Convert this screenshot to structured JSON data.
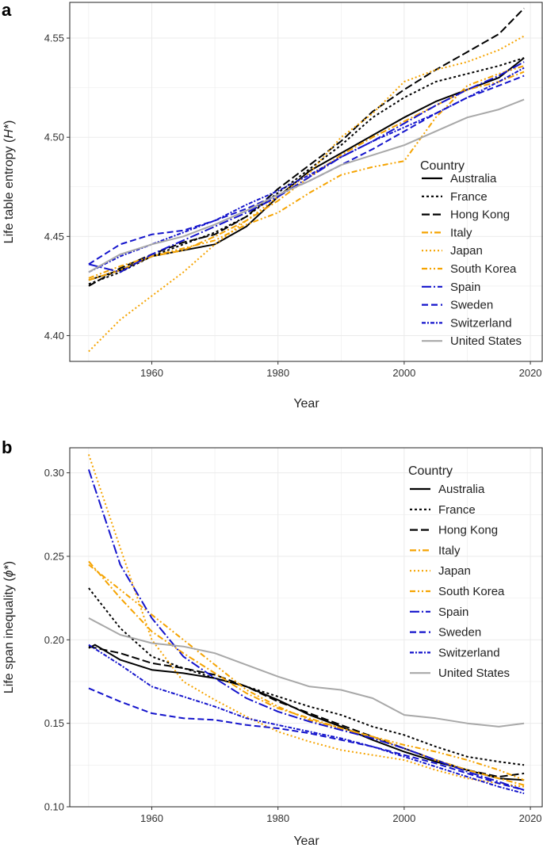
{
  "chart_data": [
    {
      "panel": "a",
      "type": "line",
      "xlabel": "Year",
      "ylabel": "Life table entropy (H*)",
      "ylabel_parts": [
        "Life table entropy (",
        "H*",
        ")"
      ],
      "xlim": [
        1947,
        2022
      ],
      "ylim": [
        4.387,
        4.568
      ],
      "xticks": [
        1960,
        1980,
        2000,
        2020
      ],
      "yticks": [
        4.4,
        4.45,
        4.5,
        4.55
      ],
      "ytick_labels": [
        "4.40",
        "4.45",
        "4.50",
        "4.55"
      ],
      "legend_title": "Country",
      "series": [
        {
          "name": "Australia",
          "color": "#000000",
          "dash": "none",
          "x": [
            1950,
            1955,
            1960,
            1965,
            1970,
            1975,
            1980,
            1985,
            1990,
            1995,
            2000,
            2005,
            2010,
            2015,
            2019
          ],
          "values": [
            4.428,
            4.433,
            4.44,
            4.443,
            4.446,
            4.455,
            4.47,
            4.483,
            4.492,
            4.501,
            4.51,
            4.518,
            4.524,
            4.53,
            4.54
          ]
        },
        {
          "name": "France",
          "color": "#000000",
          "dash": "3,3",
          "x": [
            1950,
            1955,
            1960,
            1965,
            1970,
            1975,
            1980,
            1985,
            1990,
            1995,
            2000,
            2005,
            2010,
            2015,
            2019
          ],
          "values": [
            4.426,
            4.432,
            4.44,
            4.446,
            4.452,
            4.46,
            4.472,
            4.484,
            4.496,
            4.51,
            4.52,
            4.528,
            4.532,
            4.536,
            4.54
          ]
        },
        {
          "name": "Hong Kong",
          "color": "#000000",
          "dash": "10,4",
          "x": [
            1950,
            1955,
            1960,
            1965,
            1970,
            1975,
            1980,
            1985,
            1990,
            1995,
            2000,
            2005,
            2010,
            2015,
            2019
          ],
          "values": [
            4.425,
            4.434,
            4.441,
            4.447,
            4.451,
            4.46,
            4.474,
            4.486,
            4.498,
            4.513,
            4.524,
            4.534,
            4.543,
            4.552,
            4.565
          ]
        },
        {
          "name": "Italy",
          "color": "#f5a300",
          "dash": "8,3,2,3",
          "x": [
            1950,
            1955,
            1960,
            1965,
            1970,
            1975,
            1980,
            1985,
            1990,
            1995,
            2000,
            2005,
            2010,
            2015,
            2019
          ],
          "values": [
            4.428,
            4.433,
            4.44,
            4.443,
            4.45,
            4.458,
            4.468,
            4.48,
            4.491,
            4.5,
            4.508,
            4.516,
            4.524,
            4.528,
            4.533
          ]
        },
        {
          "name": "Japan",
          "color": "#f5a300",
          "dash": "2,3",
          "x": [
            1950,
            1955,
            1960,
            1965,
            1970,
            1975,
            1980,
            1985,
            1990,
            1995,
            2000,
            2005,
            2010,
            2015,
            2019
          ],
          "values": [
            4.392,
            4.408,
            4.42,
            4.432,
            4.446,
            4.458,
            4.47,
            4.482,
            4.5,
            4.512,
            4.528,
            4.534,
            4.538,
            4.544,
            4.551
          ]
        },
        {
          "name": "South Korea",
          "color": "#f5a300",
          "dash": "7,3,2,3,2,3",
          "x": [
            1950,
            1955,
            1960,
            1965,
            1970,
            1975,
            1980,
            1985,
            1990,
            1995,
            2000,
            2005,
            2010,
            2015,
            2019
          ],
          "values": [
            4.429,
            4.435,
            4.44,
            4.444,
            4.448,
            4.456,
            4.462,
            4.472,
            4.481,
            4.485,
            4.488,
            4.51,
            4.526,
            4.532,
            4.536
          ]
        },
        {
          "name": "Spain",
          "color": "#1414cc",
          "dash": "12,3,2,3",
          "x": [
            1950,
            1955,
            1960,
            1965,
            1970,
            1975,
            1980,
            1985,
            1990,
            1995,
            2000,
            2005,
            2010,
            2015,
            2019
          ],
          "values": [
            4.436,
            4.432,
            4.441,
            4.448,
            4.455,
            4.462,
            4.47,
            4.48,
            4.49,
            4.498,
            4.507,
            4.516,
            4.524,
            4.531,
            4.538
          ]
        },
        {
          "name": "Sweden",
          "color": "#1414cc",
          "dash": "8,4",
          "x": [
            1950,
            1955,
            1960,
            1965,
            1970,
            1975,
            1980,
            1985,
            1990,
            1995,
            2000,
            2005,
            2010,
            2015,
            2019
          ],
          "values": [
            4.436,
            4.446,
            4.451,
            4.453,
            4.458,
            4.464,
            4.471,
            4.478,
            4.486,
            4.494,
            4.503,
            4.512,
            4.52,
            4.526,
            4.531
          ]
        },
        {
          "name": "Switzerland",
          "color": "#1414cc",
          "dash": "5,2,2,2",
          "x": [
            1950,
            1955,
            1960,
            1965,
            1970,
            1975,
            1980,
            1985,
            1990,
            1995,
            2000,
            2005,
            2010,
            2015,
            2019
          ],
          "values": [
            4.432,
            4.44,
            4.446,
            4.452,
            4.458,
            4.466,
            4.473,
            4.481,
            4.49,
            4.498,
            4.505,
            4.512,
            4.52,
            4.528,
            4.535
          ]
        },
        {
          "name": "United States",
          "color": "#a8a8a8",
          "dash": "none",
          "x": [
            1950,
            1955,
            1960,
            1965,
            1970,
            1975,
            1980,
            1985,
            1990,
            1995,
            2000,
            2005,
            2010,
            2015,
            2019
          ],
          "values": [
            4.432,
            4.441,
            4.446,
            4.45,
            4.456,
            4.463,
            4.471,
            4.478,
            4.486,
            4.491,
            4.496,
            4.503,
            4.51,
            4.514,
            4.519
          ]
        }
      ]
    },
    {
      "panel": "b",
      "type": "line",
      "xlabel": "Year",
      "ylabel": "Life span inequality (ϕ*)",
      "ylabel_parts": [
        "Life span inequality (",
        "ϕ*",
        ")"
      ],
      "xlim": [
        1947,
        2022
      ],
      "ylim": [
        0.1,
        0.315
      ],
      "xticks": [
        1960,
        1980,
        2000,
        2020
      ],
      "yticks": [
        0.1,
        0.15,
        0.2,
        0.25,
        0.3
      ],
      "ytick_labels": [
        "0.10",
        "0.15",
        "0.20",
        "0.25",
        "0.30"
      ],
      "legend_title": "Country",
      "series": [
        {
          "name": "Australia",
          "color": "#000000",
          "dash": "none",
          "x": [
            1950,
            1951,
            1955,
            1960,
            1965,
            1970,
            1975,
            1980,
            1985,
            1990,
            1995,
            2000,
            2005,
            2010,
            2015,
            2019
          ],
          "values": [
            0.195,
            0.197,
            0.188,
            0.182,
            0.18,
            0.177,
            0.172,
            0.164,
            0.155,
            0.148,
            0.14,
            0.133,
            0.127,
            0.122,
            0.117,
            0.116
          ]
        },
        {
          "name": "France",
          "color": "#000000",
          "dash": "3,3",
          "x": [
            1950,
            1955,
            1960,
            1965,
            1970,
            1975,
            1980,
            1985,
            1990,
            1995,
            2000,
            2005,
            2010,
            2015,
            2019
          ],
          "values": [
            0.231,
            0.207,
            0.19,
            0.183,
            0.177,
            0.172,
            0.166,
            0.16,
            0.155,
            0.148,
            0.143,
            0.136,
            0.13,
            0.127,
            0.125
          ]
        },
        {
          "name": "Hong Kong",
          "color": "#000000",
          "dash": "10,4",
          "x": [
            1950,
            1955,
            1960,
            1965,
            1970,
            1975,
            1980,
            1985,
            1990,
            1995,
            2000,
            2005,
            2010,
            2015,
            2019
          ],
          "values": [
            0.196,
            0.192,
            0.186,
            0.183,
            0.179,
            0.172,
            0.163,
            0.156,
            0.149,
            0.142,
            0.135,
            0.128,
            0.122,
            0.118,
            0.12
          ]
        },
        {
          "name": "Italy",
          "color": "#f5a300",
          "dash": "8,3,2,3",
          "x": [
            1950,
            1955,
            1960,
            1965,
            1970,
            1975,
            1980,
            1985,
            1990,
            1995,
            2000,
            2005,
            2010,
            2015,
            2019
          ],
          "values": [
            0.247,
            0.225,
            0.205,
            0.192,
            0.18,
            0.168,
            0.159,
            0.153,
            0.147,
            0.142,
            0.135,
            0.128,
            0.122,
            0.117,
            0.113
          ]
        },
        {
          "name": "Japan",
          "color": "#f5a300",
          "dash": "2,3",
          "x": [
            1950,
            1955,
            1960,
            1965,
            1970,
            1975,
            1980,
            1985,
            1990,
            1995,
            2000,
            2005,
            2010,
            2015,
            2019
          ],
          "values": [
            0.311,
            0.255,
            0.2,
            0.175,
            0.164,
            0.154,
            0.145,
            0.139,
            0.134,
            0.131,
            0.128,
            0.122,
            0.117,
            0.114,
            0.112
          ]
        },
        {
          "name": "South Korea",
          "color": "#f5a300",
          "dash": "7,3,2,3,2,3",
          "x": [
            1950,
            1955,
            1960,
            1965,
            1970,
            1975,
            1980,
            1985,
            1990,
            1995,
            2000,
            2005,
            2010,
            2015,
            2019
          ],
          "values": [
            0.245,
            0.23,
            0.215,
            0.2,
            0.185,
            0.17,
            0.16,
            0.152,
            0.147,
            0.142,
            0.137,
            0.133,
            0.128,
            0.122,
            0.116
          ]
        },
        {
          "name": "Spain",
          "color": "#1414cc",
          "dash": "12,3,2,3",
          "x": [
            1950,
            1955,
            1960,
            1965,
            1970,
            1975,
            1980,
            1985,
            1990,
            1995,
            2000,
            2005,
            2010,
            2015,
            2019
          ],
          "values": [
            0.302,
            0.245,
            0.213,
            0.19,
            0.177,
            0.165,
            0.157,
            0.151,
            0.146,
            0.141,
            0.135,
            0.128,
            0.121,
            0.115,
            0.11
          ]
        },
        {
          "name": "Sweden",
          "color": "#1414cc",
          "dash": "8,4",
          "x": [
            1950,
            1955,
            1960,
            1965,
            1970,
            1975,
            1980,
            1985,
            1990,
            1995,
            2000,
            2005,
            2010,
            2015,
            2019
          ],
          "values": [
            0.171,
            0.163,
            0.156,
            0.153,
            0.152,
            0.149,
            0.147,
            0.144,
            0.14,
            0.136,
            0.131,
            0.126,
            0.12,
            0.114,
            0.11
          ]
        },
        {
          "name": "Switzerland",
          "color": "#1414cc",
          "dash": "5,2,2,2",
          "x": [
            1950,
            1955,
            1960,
            1965,
            1970,
            1975,
            1980,
            1985,
            1990,
            1995,
            2000,
            2005,
            2010,
            2015,
            2019
          ],
          "values": [
            0.197,
            0.185,
            0.172,
            0.166,
            0.16,
            0.153,
            0.149,
            0.145,
            0.141,
            0.136,
            0.13,
            0.124,
            0.118,
            0.112,
            0.108
          ]
        },
        {
          "name": "United States",
          "color": "#a8a8a8",
          "dash": "none",
          "x": [
            1950,
            1955,
            1960,
            1965,
            1970,
            1975,
            1980,
            1985,
            1990,
            1995,
            2000,
            2005,
            2010,
            2015,
            2019
          ],
          "values": [
            0.213,
            0.203,
            0.198,
            0.196,
            0.192,
            0.185,
            0.178,
            0.172,
            0.17,
            0.165,
            0.155,
            0.153,
            0.15,
            0.148,
            0.15
          ]
        }
      ]
    }
  ]
}
